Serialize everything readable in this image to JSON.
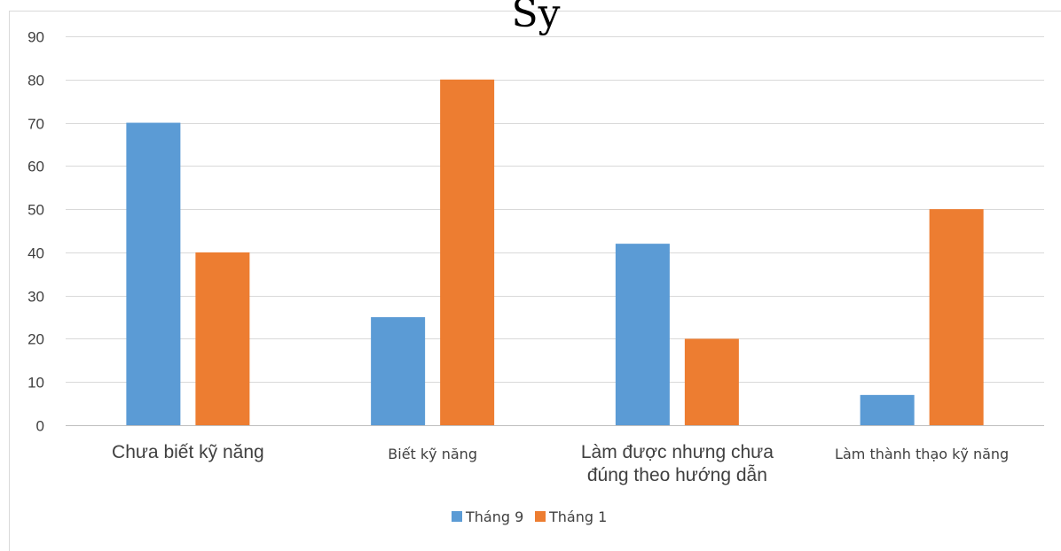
{
  "colors": {
    "series1": "#5b9bd5",
    "series2": "#ed7d31"
  },
  "title_fragment": "Sy",
  "chart_data": {
    "type": "bar",
    "categories": [
      [
        "Chưa biết kỹ năng"
      ],
      [
        "Biết kỹ năng"
      ],
      [
        "Làm được nhưng chưa",
        "đúng theo hướng dẫn"
      ],
      [
        "Làm thành thạo kỹ năng"
      ]
    ],
    "series": [
      {
        "name": "Tháng 9",
        "values": [
          70,
          25,
          42,
          7
        ]
      },
      {
        "name": "Tháng 1",
        "values": [
          40,
          80,
          20,
          50
        ]
      }
    ],
    "ylim": [
      0,
      90
    ],
    "yticks": [
      "0",
      "10",
      "20",
      "30",
      "40",
      "50",
      "60",
      "70",
      "80",
      "90"
    ],
    "grid": true,
    "legend_position": "bottom"
  }
}
